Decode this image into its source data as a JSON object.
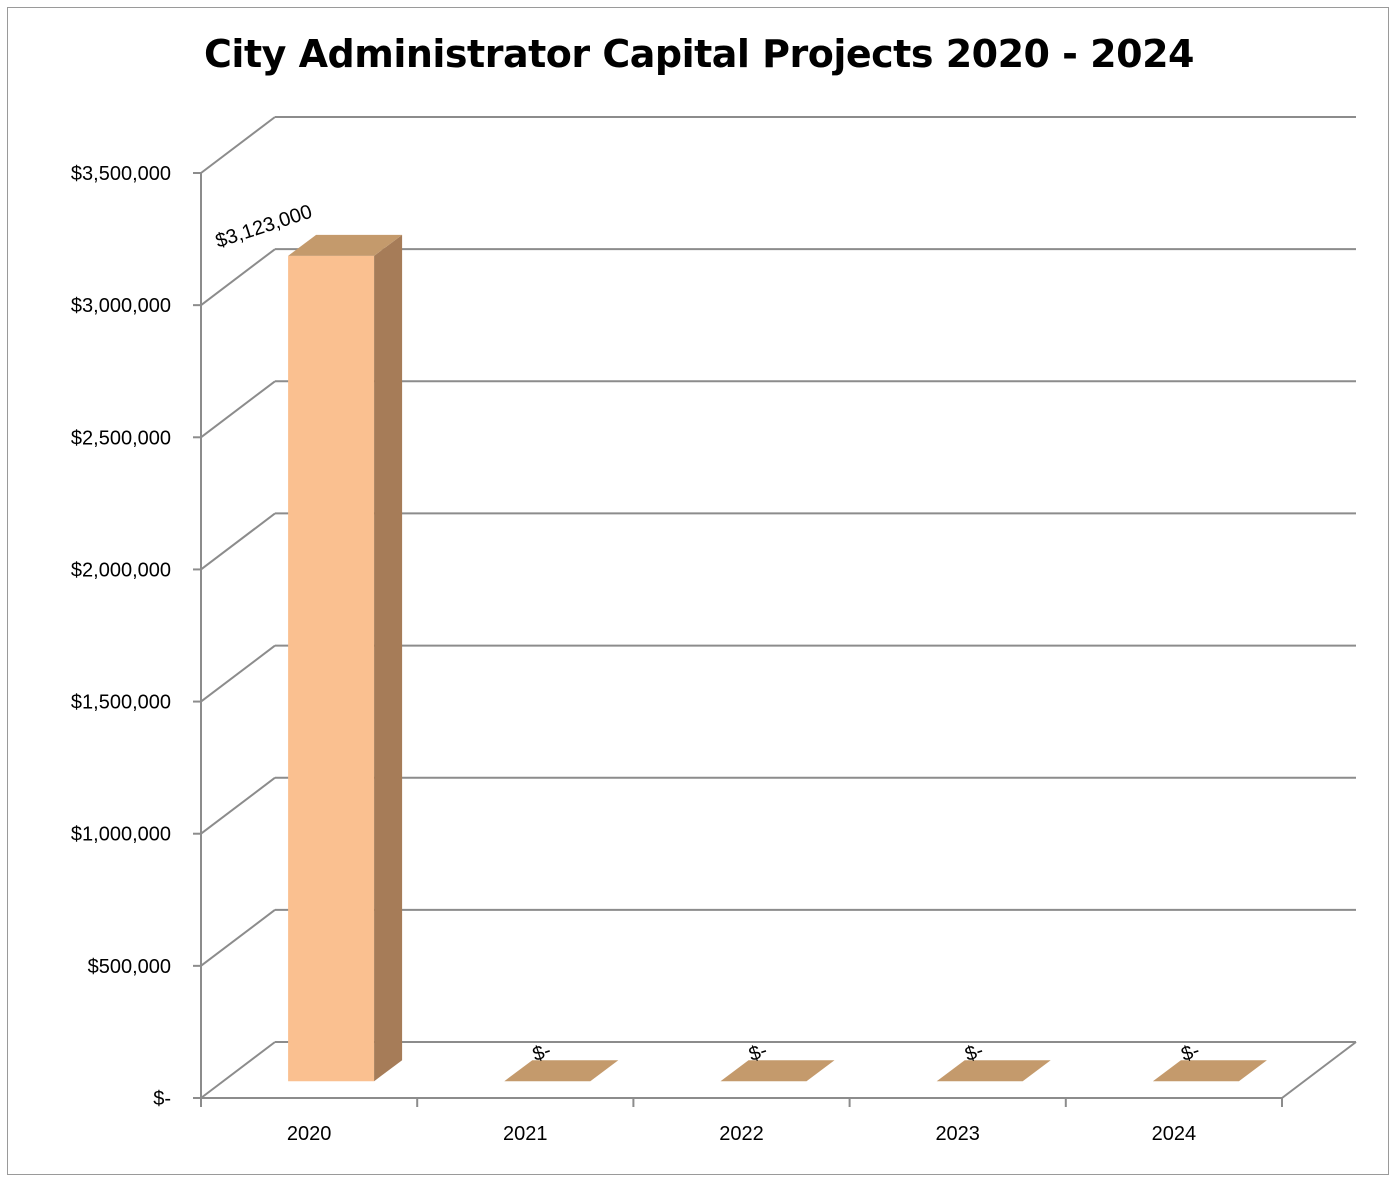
{
  "chart_data": {
    "type": "bar",
    "style": "3d-column",
    "title": "City Administrator Capital Projects 2020 - 2024",
    "xlabel": "",
    "ylabel": "",
    "categories": [
      "2020",
      "2021",
      "2022",
      "2023",
      "2024"
    ],
    "values": [
      3123000,
      0,
      0,
      0,
      0
    ],
    "data_labels": [
      "$3,123,000",
      "$-",
      "$-",
      "$-",
      "$-"
    ],
    "ylim": [
      0,
      3500000
    ],
    "y_ticks": [
      0,
      500000,
      1000000,
      1500000,
      2000000,
      2500000,
      3000000,
      3500000
    ],
    "y_tick_labels": [
      "$-",
      "$500,000",
      "$1,000,000",
      "$1,500,000",
      "$2,000,000",
      "$2,500,000",
      "$3,000,000",
      "$3,500,000"
    ],
    "grid": true,
    "legend": "none",
    "colors": {
      "bar_front": "#FAC090",
      "bar_side": "#A67C58",
      "bar_top": "#C49A6C",
      "gridline": "#8c8c8c",
      "axis": "#8c8c8c"
    }
  }
}
